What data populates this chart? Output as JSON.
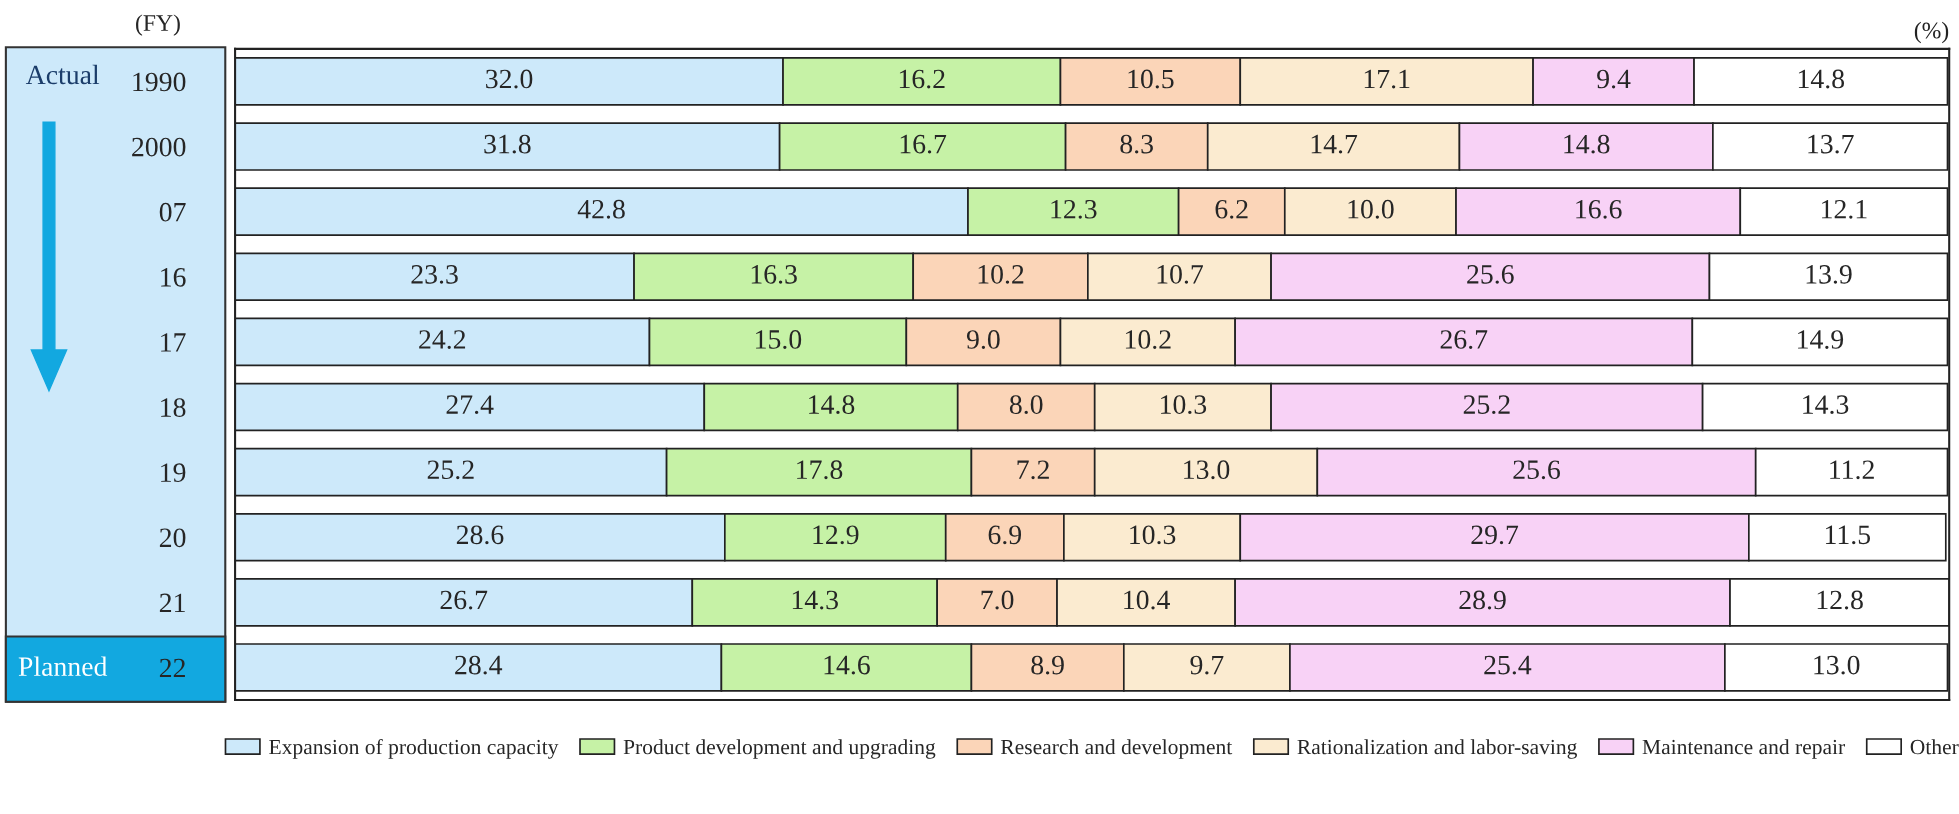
{
  "chart_data": {
    "type": "bar",
    "orientation": "horizontal",
    "stacked": true,
    "legend": "bottom",
    "tick_labels": "y",
    "grid": false,
    "ylabel": "(FY)",
    "annotations": [
      "(%)",
      "Actual",
      "Planned"
    ],
    "categories": [
      "1990",
      "2000",
      "07",
      "16",
      "17",
      "18",
      "19",
      "20",
      "21",
      "22"
    ],
    "series": [
      {
        "name": "Expansion of production capacity",
        "color": "#cde9fa",
        "values": [
          32.0,
          31.8,
          42.8,
          23.3,
          24.2,
          27.4,
          25.2,
          28.6,
          26.7,
          28.4
        ],
        "value_labels": [
          "32.0",
          "31.8",
          "42.8",
          "23.3",
          "24.2",
          "27.4",
          "25.2",
          "28.6",
          "26.7",
          "28.4"
        ]
      },
      {
        "name": "Product development and upgrading",
        "color": "#c6f2a6",
        "values": [
          16.2,
          16.7,
          12.3,
          16.3,
          15.0,
          14.8,
          17.8,
          12.9,
          14.3,
          14.6
        ],
        "value_labels": [
          "16.2",
          "16.7",
          "12.3",
          "16.3",
          "15.0",
          "14.8",
          "17.8",
          "12.9",
          "14.3",
          "14.6"
        ]
      },
      {
        "name": "Research and development",
        "color": "#fbd5b8",
        "values": [
          10.5,
          8.3,
          6.2,
          10.2,
          9.0,
          8.0,
          7.2,
          6.9,
          7.0,
          8.9
        ],
        "value_labels": [
          "10.5",
          "8.3",
          "6.2",
          "10.2",
          "9.0",
          "8.0",
          "7.2",
          "6.9",
          "7.0",
          "8.9"
        ]
      },
      {
        "name": "Rationalization and labor-saving",
        "color": "#fbebd0",
        "values": [
          17.1,
          14.7,
          10.0,
          10.7,
          10.2,
          10.3,
          13.0,
          10.3,
          10.4,
          9.7
        ],
        "value_labels": [
          "17.1",
          "14.7",
          "10.0",
          "10.7",
          "10.2",
          "10.3",
          "13.0",
          "10.3",
          "10.4",
          "9.7"
        ]
      },
      {
        "name": "Maintenance and repair",
        "color": "#f8d2f6",
        "values": [
          9.4,
          14.8,
          16.6,
          25.6,
          26.7,
          25.2,
          25.6,
          29.7,
          28.9,
          25.4
        ],
        "value_labels": [
          "9.4",
          "14.8",
          "16.6",
          "25.6",
          "26.7",
          "25.2",
          "25.6",
          "29.7",
          "28.9",
          "25.4"
        ]
      },
      {
        "name": "Other",
        "color": "#ffffff",
        "values": [
          14.8,
          13.7,
          12.1,
          13.9,
          14.9,
          14.3,
          11.2,
          11.5,
          12.8,
          13.0
        ],
        "value_labels": [
          "14.8",
          "13.7",
          "12.1",
          "13.9",
          "14.9",
          "14.3",
          "11.2",
          "11.5",
          "12.8",
          "13.0"
        ]
      }
    ]
  }
}
